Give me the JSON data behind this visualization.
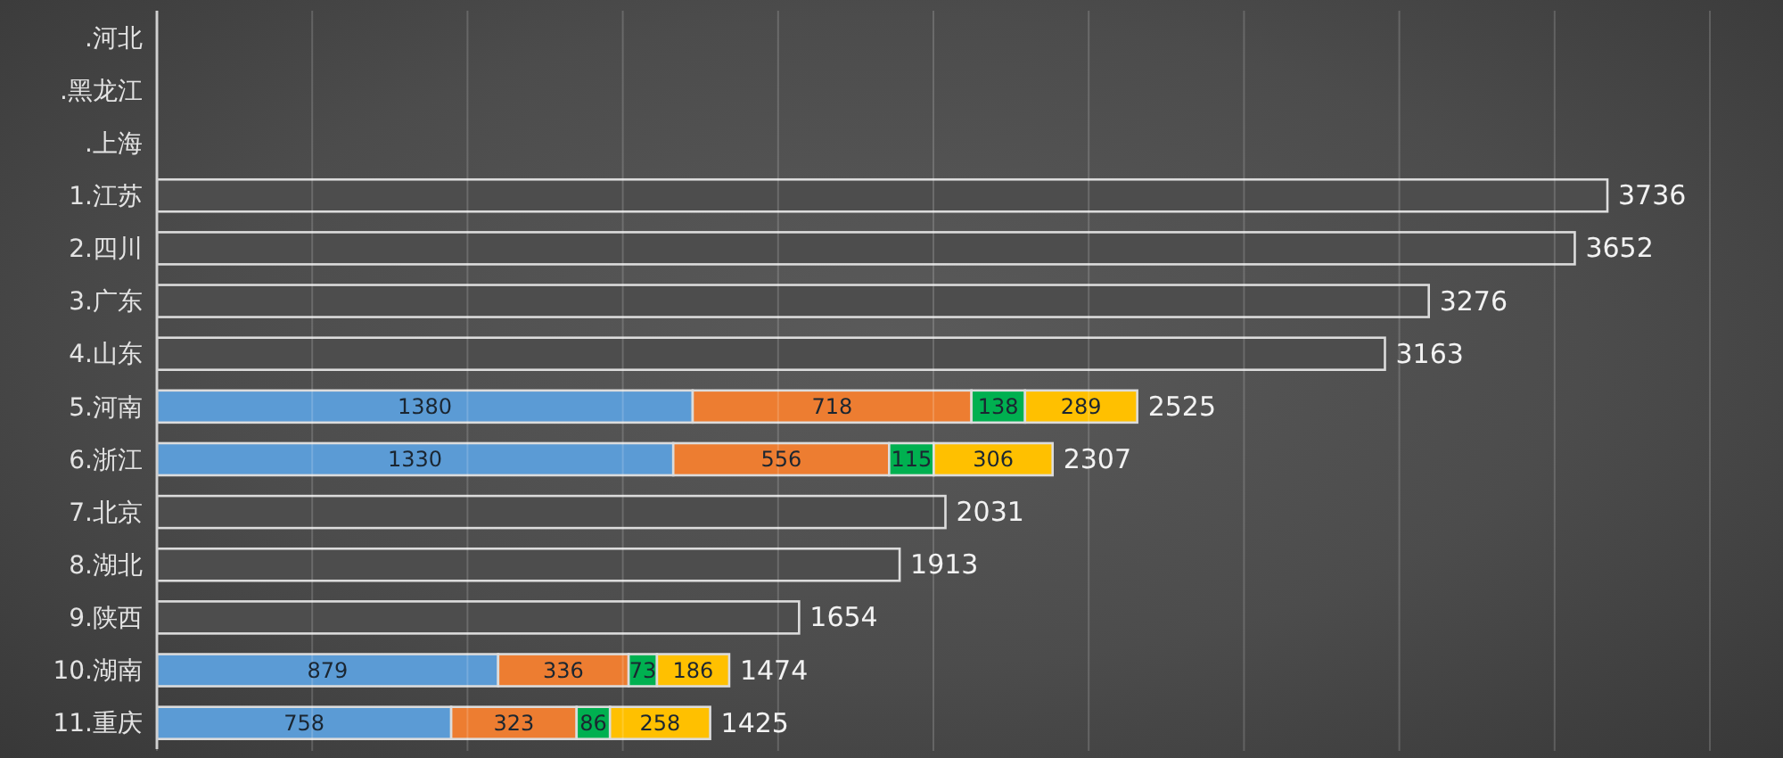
{
  "chart_data": {
    "type": "bar",
    "orientation": "horizontal",
    "stacked": true,
    "categories": [
      ".河北",
      ".黑龙江",
      ".上海",
      "1.江苏",
      "2.四川",
      "3.广东",
      "4.山东",
      "5.河南",
      "6.浙江",
      "7.北京",
      "8.湖北",
      "9.陕西",
      "10.湖南",
      "11.重庆"
    ],
    "series": [
      {
        "color": "#5b9bd5",
        "values": [
          null,
          null,
          null,
          null,
          null,
          null,
          null,
          1380,
          1330,
          null,
          null,
          null,
          879,
          758
        ],
        "value_labels": [
          null,
          null,
          null,
          null,
          null,
          null,
          null,
          "1380",
          "1330",
          null,
          null,
          null,
          "879",
          "758"
        ]
      },
      {
        "color": "#ed7d31",
        "values": [
          null,
          null,
          null,
          null,
          null,
          null,
          null,
          718,
          556,
          null,
          null,
          null,
          336,
          323
        ],
        "value_labels": [
          null,
          null,
          null,
          null,
          null,
          null,
          null,
          "718",
          "556",
          null,
          null,
          null,
          "336",
          "323"
        ]
      },
      {
        "color": "#00b050",
        "values": [
          null,
          null,
          null,
          null,
          null,
          null,
          null,
          138,
          115,
          null,
          null,
          null,
          73,
          86
        ],
        "value_labels": [
          null,
          null,
          null,
          null,
          null,
          null,
          null,
          "138",
          "115",
          null,
          null,
          null,
          "73",
          "86"
        ]
      },
      {
        "color": "#ffc000",
        "values": [
          null,
          null,
          null,
          null,
          null,
          null,
          null,
          289,
          306,
          null,
          null,
          null,
          186,
          258
        ],
        "value_labels": [
          null,
          null,
          null,
          null,
          null,
          null,
          null,
          "289",
          "306",
          null,
          null,
          null,
          "186",
          "258"
        ]
      },
      {
        "color": "#4d4d4d",
        "values": [
          null,
          null,
          null,
          3736,
          3652,
          3276,
          3163,
          null,
          null,
          2031,
          1913,
          1654,
          null,
          null
        ]
      }
    ],
    "totals": [
      null,
      null,
      null,
      "3736",
      "3652",
      "3276",
      "3163",
      "2525",
      "2307",
      "2031",
      "1913",
      "1654",
      "1474",
      "1425"
    ],
    "grid": "x",
    "tick_labels": "y"
  }
}
